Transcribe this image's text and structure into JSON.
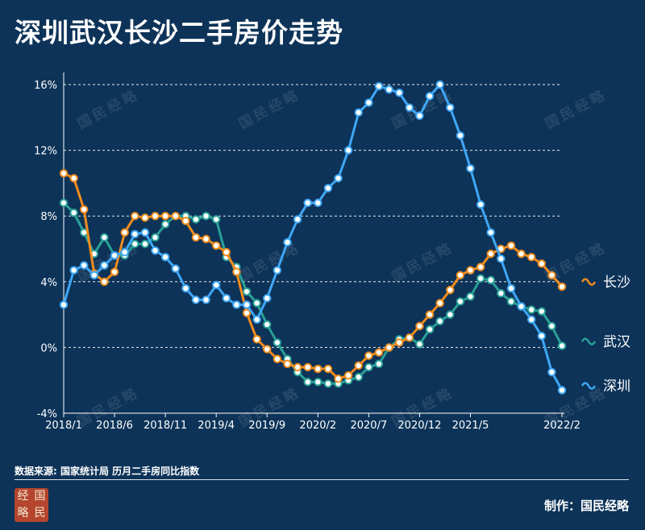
{
  "title": "深圳武汉长沙二手房价走势",
  "source_note": "数据来源: 国家统计局 历月二手房同比指数",
  "credit": "制作：国民经略",
  "logo": {
    "chars": [
      "经",
      "国",
      "略",
      "民"
    ],
    "color": "#b5452e"
  },
  "watermark_text": "国民经略",
  "colors": {
    "background": "#0d3358",
    "changsha": "#f08c1e",
    "wuhan": "#2aa197",
    "shenzhen": "#3fa7f5"
  },
  "chart_data": {
    "type": "line",
    "title": "深圳武汉长沙二手房价走势",
    "xlabel": "",
    "ylabel": "",
    "ylim": [
      -4,
      16
    ],
    "yticks": [
      -4,
      0,
      4,
      8,
      12,
      16
    ],
    "ytick_labels": [
      "-4%",
      "0%",
      "4%",
      "8%",
      "12%",
      "16%"
    ],
    "x": [
      "2018/1",
      "2018/2",
      "2018/3",
      "2018/4",
      "2018/5",
      "2018/6",
      "2018/7",
      "2018/8",
      "2018/9",
      "2018/10",
      "2018/11",
      "2018/12",
      "2019/1",
      "2019/2",
      "2019/3",
      "2019/4",
      "2019/5",
      "2019/6",
      "2019/7",
      "2019/8",
      "2019/9",
      "2019/10",
      "2019/11",
      "2019/12",
      "2020/1",
      "2020/2",
      "2020/3",
      "2020/4",
      "2020/5",
      "2020/6",
      "2020/7",
      "2020/8",
      "2020/9",
      "2020/10",
      "2020/11",
      "2020/12",
      "2021/1",
      "2021/2",
      "2021/3",
      "2021/4",
      "2021/5",
      "2021/6",
      "2021/7",
      "2021/8",
      "2021/9",
      "2021/10",
      "2021/11",
      "2021/12",
      "2022/1",
      "2022/2"
    ],
    "xtick_labels": [
      "2018/1",
      "2018/6",
      "2018/11",
      "2019/4",
      "2019/9",
      "2020/2",
      "2020/7",
      "2020/12",
      "2021/5",
      "2022/2"
    ],
    "grid": true,
    "legend_position": "right",
    "series": [
      {
        "name": "长沙",
        "color": "#f08c1e",
        "values": [
          10.6,
          10.3,
          8.4,
          4.5,
          4.0,
          4.6,
          7.0,
          8.0,
          7.9,
          8.0,
          8.0,
          8.0,
          7.7,
          6.7,
          6.6,
          6.2,
          5.8,
          4.6,
          2.1,
          0.5,
          -0.1,
          -0.7,
          -1.0,
          -1.2,
          -1.2,
          -1.3,
          -1.3,
          -1.9,
          -1.7,
          -1.1,
          -0.5,
          -0.3,
          0.0,
          0.3,
          0.6,
          1.3,
          2.0,
          2.7,
          3.5,
          4.4,
          4.7,
          4.9,
          5.7,
          6.0,
          6.2,
          5.7,
          5.5,
          5.1,
          4.4,
          3.7
        ]
      },
      {
        "name": "武汉",
        "color": "#2aa197",
        "values": [
          8.8,
          8.2,
          7.0,
          5.7,
          6.7,
          5.6,
          5.6,
          6.3,
          6.3,
          6.7,
          7.5,
          8.0,
          8.0,
          7.8,
          8.0,
          7.8,
          5.5,
          4.9,
          3.4,
          2.7,
          1.4,
          0.3,
          -0.7,
          -1.5,
          -2.1,
          -2.1,
          -2.2,
          -2.2,
          -2.0,
          -1.8,
          -1.2,
          -1.0,
          0.0,
          0.5,
          0.6,
          0.2,
          1.1,
          1.6,
          2.0,
          2.8,
          3.1,
          4.2,
          4.1,
          3.3,
          2.8,
          2.5,
          2.3,
          2.2,
          1.3,
          0.1
        ]
      },
      {
        "name": "深圳",
        "color": "#3fa7f5",
        "values": [
          2.6,
          4.7,
          5.0,
          4.4,
          5.0,
          5.6,
          5.8,
          6.9,
          7.0,
          5.9,
          5.5,
          4.8,
          3.6,
          2.9,
          2.9,
          3.8,
          3.0,
          2.6,
          2.6,
          1.7,
          3.0,
          4.7,
          6.4,
          7.8,
          8.8,
          8.8,
          9.7,
          10.3,
          12.0,
          14.3,
          14.9,
          15.9,
          15.7,
          15.5,
          14.6,
          14.1,
          15.3,
          16.0,
          14.6,
          12.9,
          10.9,
          8.7,
          7.0,
          5.4,
          3.6,
          2.5,
          1.7,
          0.7,
          -1.5,
          -2.6
        ]
      }
    ]
  }
}
